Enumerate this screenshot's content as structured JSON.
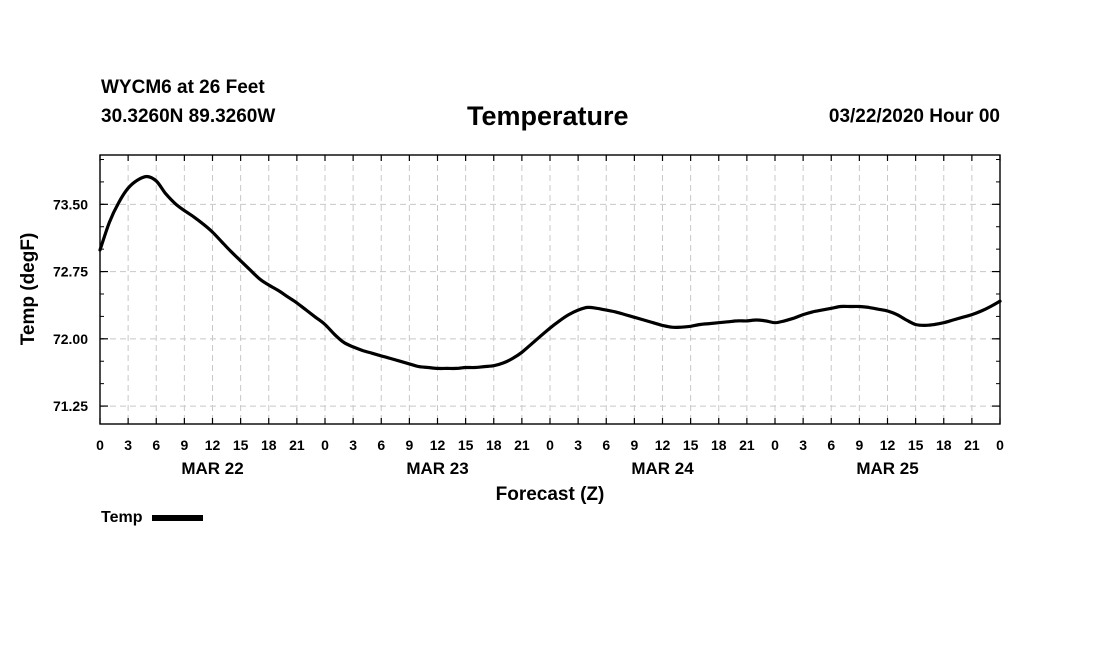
{
  "header": {
    "station": "WYCM6 at 26 Feet",
    "coords": "30.3260N 89.3260W",
    "title": "Temperature",
    "runtime": "03/22/2020 Hour 00"
  },
  "legend": {
    "label": "Temp"
  },
  "chart_data": {
    "type": "line",
    "title": "Temperature",
    "xlabel": "Forecast (Z)",
    "ylabel": "Temp (degF)",
    "x_unit": "forecast hour",
    "xlim": [
      0,
      96
    ],
    "ylim": [
      71.05,
      74.05
    ],
    "yticks": [
      71.25,
      72.0,
      72.75,
      73.5
    ],
    "ytick_labels": [
      "71.25",
      "72.00",
      "72.75",
      "73.50"
    ],
    "xticks": [
      0,
      3,
      6,
      9,
      12,
      15,
      18,
      21,
      24,
      27,
      30,
      33,
      36,
      39,
      42,
      45,
      48,
      51,
      54,
      57,
      60,
      63,
      66,
      69,
      72,
      75,
      78,
      81,
      84,
      87,
      90,
      93,
      96
    ],
    "xtick_labels": [
      "0",
      "3",
      "6",
      "9",
      "12",
      "15",
      "18",
      "21",
      "0",
      "3",
      "6",
      "9",
      "12",
      "15",
      "18",
      "21",
      "0",
      "3",
      "6",
      "9",
      "12",
      "15",
      "18",
      "21",
      "0",
      "3",
      "6",
      "9",
      "12",
      "15",
      "18",
      "21",
      "0"
    ],
    "day_labels": [
      {
        "x": 12,
        "label": "MAR 22"
      },
      {
        "x": 36,
        "label": "MAR 23"
      },
      {
        "x": 60,
        "label": "MAR 24"
      },
      {
        "x": 84,
        "label": "MAR 25"
      }
    ],
    "grid": true,
    "legend_position": "bottom-left",
    "line_color": "#000000",
    "series": [
      {
        "name": "Temp",
        "x": [
          0,
          1,
          2,
          3,
          4,
          5,
          6,
          7,
          8,
          9,
          10,
          11,
          12,
          13,
          14,
          15,
          16,
          17,
          18,
          19,
          20,
          21,
          22,
          23,
          24,
          25,
          26,
          27,
          28,
          29,
          30,
          31,
          32,
          33,
          34,
          35,
          36,
          37,
          38,
          39,
          40,
          41,
          42,
          43,
          44,
          45,
          46,
          47,
          48,
          49,
          50,
          51,
          52,
          53,
          54,
          55,
          56,
          57,
          58,
          59,
          60,
          61,
          62,
          63,
          64,
          65,
          66,
          67,
          68,
          69,
          70,
          71,
          72,
          73,
          74,
          75,
          76,
          77,
          78,
          79,
          80,
          81,
          82,
          83,
          84,
          85,
          86,
          87,
          88,
          89,
          90,
          91,
          92,
          93,
          94,
          95,
          96
        ],
        "values": [
          72.99,
          73.3,
          73.52,
          73.68,
          73.77,
          73.81,
          73.76,
          73.62,
          73.51,
          73.43,
          73.36,
          73.28,
          73.19,
          73.08,
          72.97,
          72.87,
          72.77,
          72.67,
          72.6,
          72.54,
          72.47,
          72.4,
          72.32,
          72.24,
          72.16,
          72.05,
          71.96,
          71.91,
          71.87,
          71.84,
          71.81,
          71.78,
          71.75,
          71.72,
          71.69,
          71.68,
          71.67,
          71.67,
          71.67,
          71.68,
          71.68,
          71.69,
          71.7,
          71.73,
          71.78,
          71.85,
          71.94,
          72.03,
          72.12,
          72.2,
          72.27,
          72.32,
          72.35,
          72.34,
          72.32,
          72.3,
          72.27,
          72.24,
          72.21,
          72.18,
          72.15,
          72.13,
          72.13,
          72.14,
          72.16,
          72.17,
          72.18,
          72.19,
          72.2,
          72.2,
          72.21,
          72.2,
          72.18,
          72.2,
          72.23,
          72.27,
          72.3,
          72.32,
          72.34,
          72.36,
          72.36,
          72.36,
          72.35,
          72.33,
          72.31,
          72.27,
          72.21,
          72.16,
          72.15,
          72.16,
          72.18,
          72.21,
          72.24,
          72.27,
          72.31,
          72.36,
          72.42
        ]
      }
    ]
  }
}
